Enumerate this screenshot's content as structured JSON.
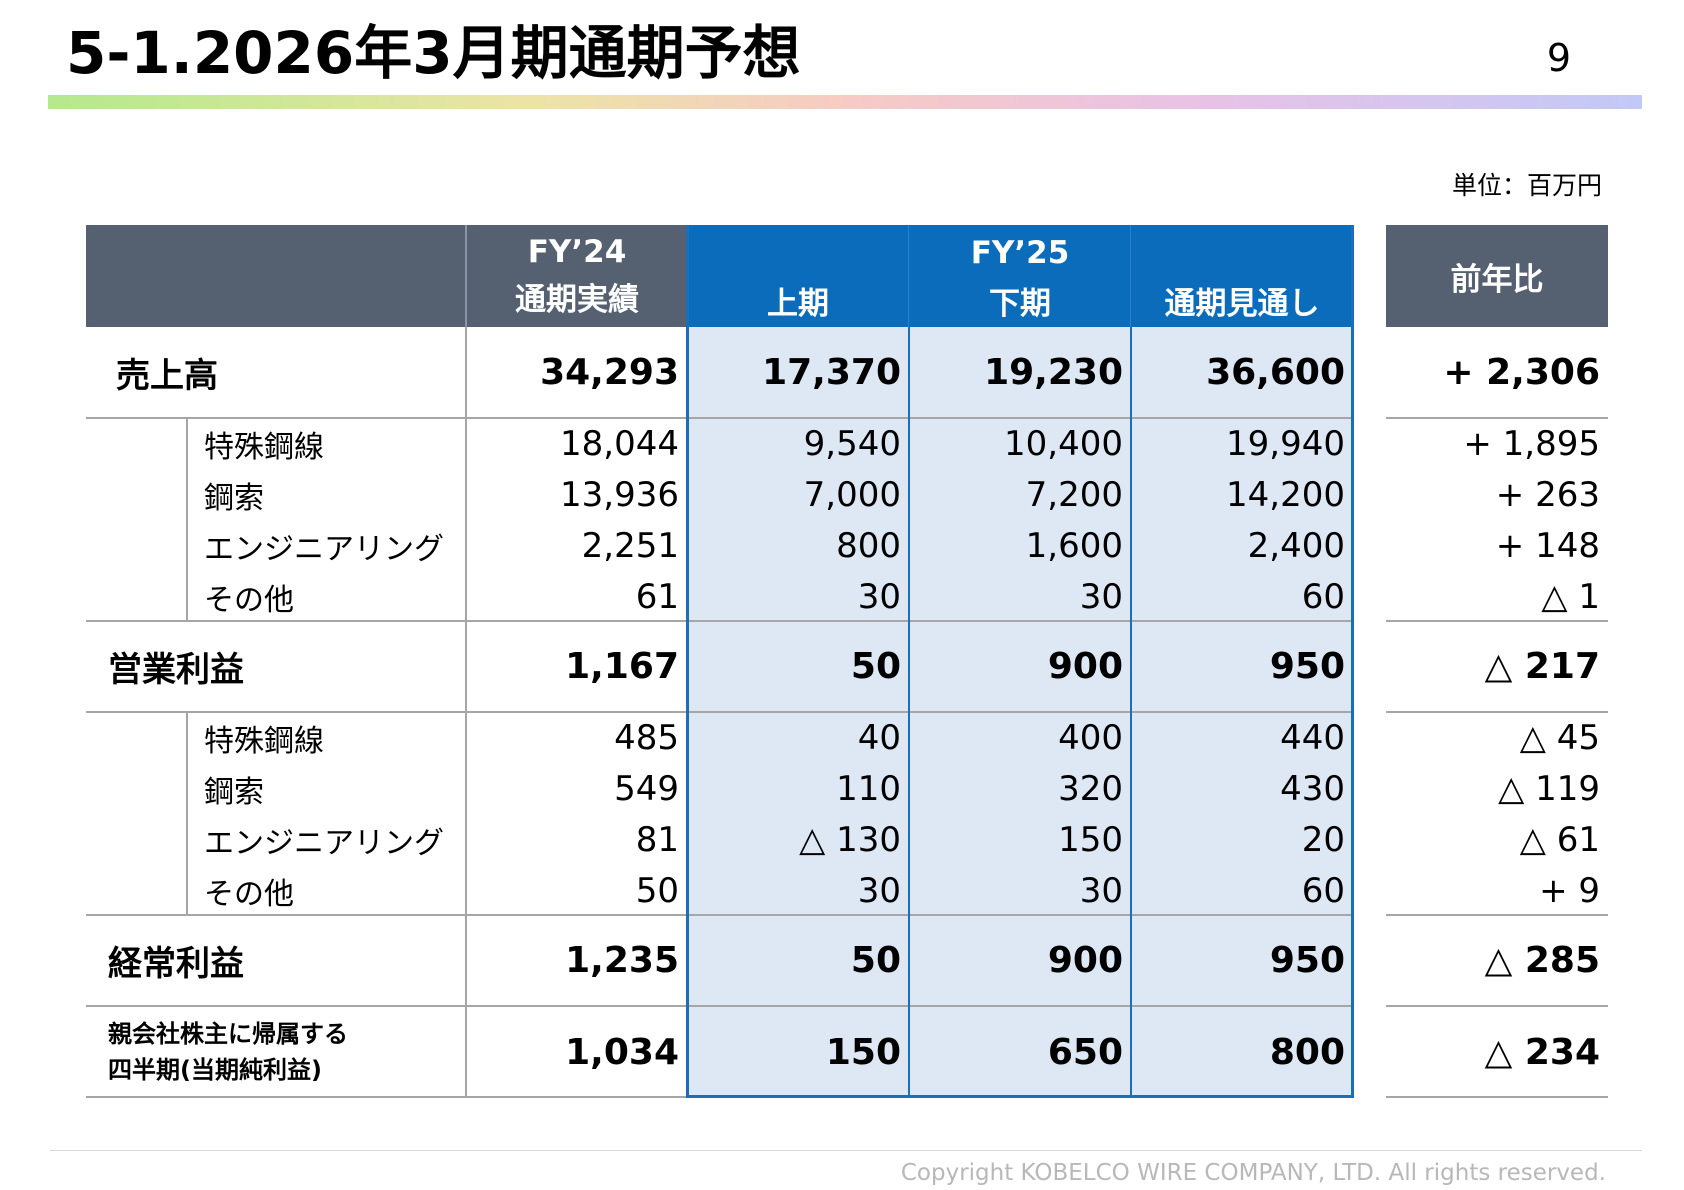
{
  "slide": {
    "title": "5-1.2026年3月期通期予想",
    "page_number": "9",
    "unit": "単位：百万円",
    "copyright": "Copyright  KOBELCO WIRE COMPANY, LTD. All rights reserved."
  },
  "table": {
    "headers": {
      "fy24_line1": "FY’24",
      "fy24_line2": "通期実績",
      "fy25_title": "FY’25",
      "h1": "上期",
      "h2": "下期",
      "full": "通期見通し",
      "yoy": "前年比"
    },
    "sections": [
      {
        "id": "sales",
        "label": "売上高",
        "total": {
          "fy24": "34,293",
          "h1": "17,370",
          "h2": "19,230",
          "full": "36,600",
          "yoy": "+ 2,306"
        },
        "rows": [
          {
            "label": "特殊鋼線",
            "fy24": "18,044",
            "h1": "9,540",
            "h2": "10,400",
            "full": "19,940",
            "yoy": "+ 1,895"
          },
          {
            "label": "鋼索",
            "fy24": "13,936",
            "h1": "7,000",
            "h2": "7,200",
            "full": "14,200",
            "yoy": "+ 263"
          },
          {
            "label": "エンジニアリング",
            "fy24": "2,251",
            "h1": "800",
            "h2": "1,600",
            "full": "2,400",
            "yoy": "+ 148"
          },
          {
            "label": "その他",
            "fy24": "61",
            "h1": "30",
            "h2": "30",
            "full": "60",
            "yoy": "△ 1"
          }
        ]
      },
      {
        "id": "operating",
        "label": "営業利益",
        "total": {
          "fy24": "1,167",
          "h1": "50",
          "h2": "900",
          "full": "950",
          "yoy": "△ 217"
        },
        "rows": [
          {
            "label": "特殊鋼線",
            "fy24": "485",
            "h1": "40",
            "h2": "400",
            "full": "440",
            "yoy": "△ 45"
          },
          {
            "label": "鋼索",
            "fy24": "549",
            "h1": "110",
            "h2": "320",
            "full": "430",
            "yoy": "△ 119"
          },
          {
            "label": "エンジニアリング",
            "fy24": "81",
            "h1": "△ 130",
            "h2": "150",
            "full": "20",
            "yoy": "△ 61"
          },
          {
            "label": "その他",
            "fy24": "50",
            "h1": "30",
            "h2": "30",
            "full": "60",
            "yoy": "+ 9"
          }
        ]
      }
    ],
    "ordinary": {
      "label": "経常利益",
      "fy24": "1,235",
      "h1": "50",
      "h2": "900",
      "full": "950",
      "yoy": "△ 285"
    },
    "net": {
      "label_line1": "親会社株主に帰属する",
      "label_line2": "四半期(当期純利益)",
      "fy24": "1,034",
      "h1": "150",
      "h2": "650",
      "full": "800",
      "yoy": "△ 234"
    }
  }
}
